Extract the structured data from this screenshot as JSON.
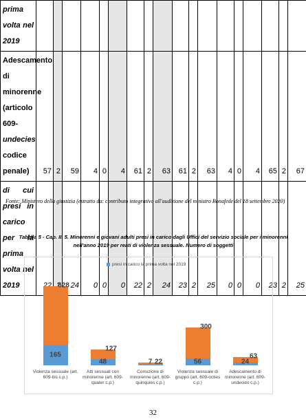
{
  "table": {
    "shaded_columns": [
      1,
      5,
      8
    ],
    "rows": [
      {
        "label": [
          "prima volta nel 2019"
        ],
        "italic": true,
        "values": []
      },
      {
        "label": [
          "Adescamento di minorenne (articolo 609-",
          "undecies",
          " codice penale)"
        ],
        "italic": false,
        "values": [
          57,
          2,
          59,
          4,
          0,
          4,
          61,
          2,
          63,
          61,
          2,
          63,
          4,
          0,
          4,
          65,
          2,
          67
        ]
      },
      {
        "label": [
          "di cui presi in carico per la prima volta nel 2019"
        ],
        "italic": true,
        "values": [
          22,
          2,
          24,
          0,
          0,
          0,
          22,
          2,
          24,
          23,
          2,
          25,
          0,
          0,
          0,
          23,
          2,
          25
        ]
      }
    ]
  },
  "source_note": "Fonte: Ministero della giustizia (estratto da: contributo integrativo all'audizione del ministro Bonafede del 18 settembre 2020)",
  "caption": "Tabella 5 - Cap. II. 5. Minorenni e giovani adulti presi in carico dagli Uffici del servizio sociale per i minorenni nell'anno 2019 per reati di violenza sessuale. Numero di soggetti",
  "chart_data": {
    "type": "bar",
    "categories": [
      "Violenza sessuale (art. 609-bis c.p.)",
      "Atti sessuali con minorenne (art. 609-quater c.p.)",
      "Corruzione di minorenne (art. 609-quinquies c.p.)",
      "Violenza sessuale di gruppo (art. 609-octies c.p.)",
      "Adescamento di minorenne (art. 609-undecies c.p.)"
    ],
    "series": [
      {
        "color": "#ed7d31",
        "values": [
          628,
          127,
          22,
          300,
          63
        ]
      },
      {
        "name": "presi in carico la prima volta nel 2019",
        "color": "#5b9bd5",
        "values": [
          165,
          48,
          7,
          56,
          24
        ]
      }
    ]
  },
  "page_number": "32"
}
